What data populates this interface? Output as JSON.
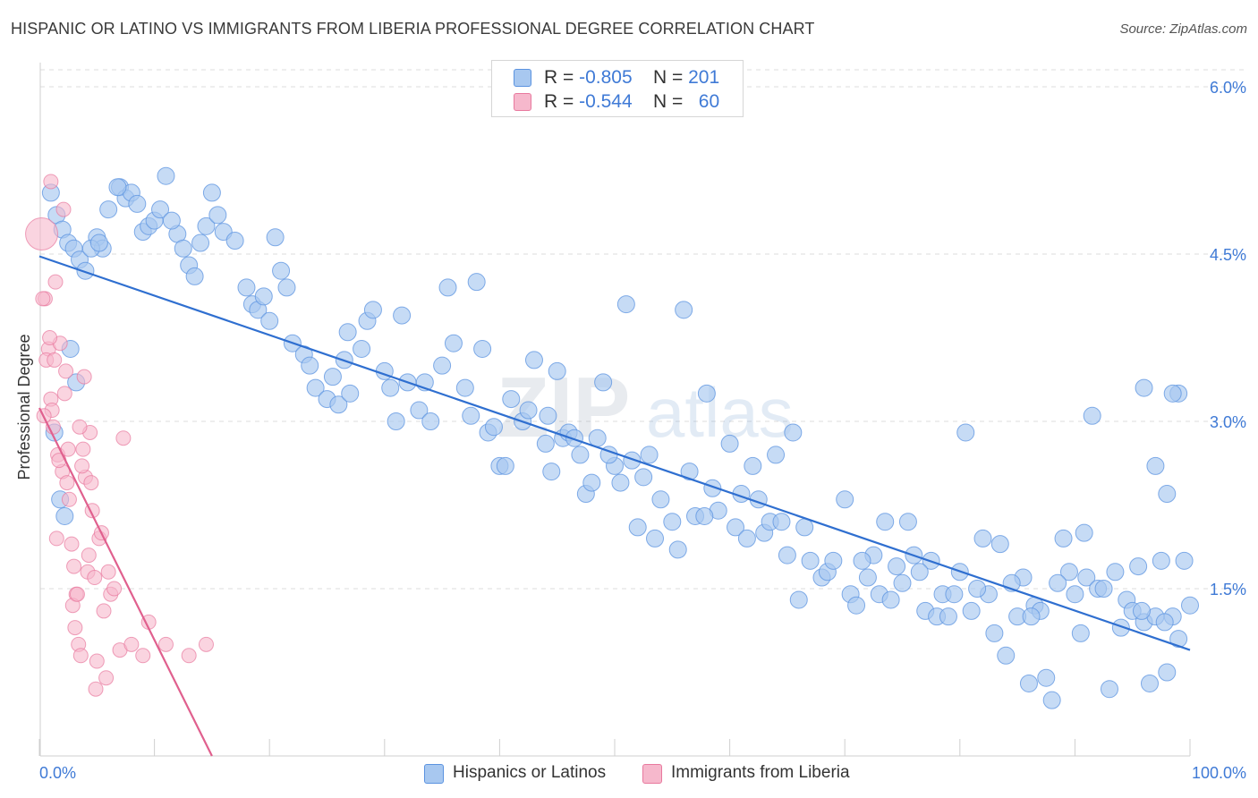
{
  "header": {
    "title": "HISPANIC OR LATINO VS IMMIGRANTS FROM LIBERIA PROFESSIONAL DEGREE CORRELATION CHART",
    "source": "Source: ZipAtlas.com"
  },
  "watermark": {
    "zip": "ZIP",
    "atlas": "atlas"
  },
  "legend_top": {
    "rows": [
      {
        "r_label": "R =",
        "r_value": "-0.805",
        "n_label": "N =",
        "n_value": "201",
        "color": "#a8c8f0"
      },
      {
        "r_label": "R =",
        "r_value": "-0.544",
        "n_label": "N =",
        "n_value": "60",
        "color": "#f6b8cc"
      }
    ]
  },
  "legend_bottom": {
    "items": [
      {
        "label": "Hispanics or Latinos",
        "color": "#a8c8f0"
      },
      {
        "label": "Immigrants from Liberia",
        "color": "#f6b8cc"
      }
    ]
  },
  "chart_data": {
    "type": "scatter",
    "title": "HISPANIC OR LATINO VS IMMIGRANTS FROM LIBERIA PROFESSIONAL DEGREE CORRELATION CHART",
    "xlabel": "",
    "ylabel": "Professional Degree",
    "xlim": [
      0,
      100
    ],
    "ylim": [
      0,
      6.2
    ],
    "x_tick_labels": [
      "0.0%",
      "100.0%"
    ],
    "y_ticks": [
      1.5,
      3.0,
      4.5,
      6.0
    ],
    "y_tick_labels": [
      "1.5%",
      "3.0%",
      "4.5%",
      "6.0%"
    ],
    "grid": true,
    "legend_position": "top-center",
    "colors": {
      "blue_fill": "#a8c8f0",
      "blue_edge": "#5b93e0",
      "blue_line": "#2f6fd0",
      "pink_fill": "#f6b8cc",
      "pink_edge": "#e8799e",
      "pink_line": "#e0608e"
    },
    "series": [
      {
        "name": "Hispanics or Latinos",
        "r": -0.805,
        "n": 201,
        "trend": {
          "x": [
            0,
            100
          ],
          "y": [
            4.48,
            0.95
          ]
        },
        "points": [
          [
            1,
            5.05
          ],
          [
            1.5,
            4.85
          ],
          [
            2,
            4.72
          ],
          [
            2.5,
            4.6
          ],
          [
            3,
            4.55
          ],
          [
            3.5,
            4.45
          ],
          [
            4,
            4.35
          ],
          [
            5,
            4.65
          ],
          [
            5.5,
            4.55
          ],
          [
            6,
            4.9
          ],
          [
            7,
            5.1
          ],
          [
            7.5,
            5.0
          ],
          [
            8,
            5.05
          ],
          [
            8.5,
            4.95
          ],
          [
            9,
            4.7
          ],
          [
            9.5,
            4.75
          ],
          [
            10,
            4.8
          ],
          [
            10.5,
            4.9
          ],
          [
            11,
            5.2
          ],
          [
            12,
            4.68
          ],
          [
            12.5,
            4.55
          ],
          [
            13,
            4.4
          ],
          [
            13.5,
            4.3
          ],
          [
            14,
            4.6
          ],
          [
            14.5,
            4.75
          ],
          [
            15,
            5.05
          ],
          [
            15.5,
            4.85
          ],
          [
            16,
            4.7
          ],
          [
            17,
            4.62
          ],
          [
            18,
            4.2
          ],
          [
            18.5,
            4.05
          ],
          [
            19,
            4.0
          ],
          [
            19.5,
            4.12
          ],
          [
            20,
            3.9
          ],
          [
            21,
            4.35
          ],
          [
            21.5,
            4.2
          ],
          [
            22,
            3.7
          ],
          [
            23,
            3.6
          ],
          [
            23.5,
            3.5
          ],
          [
            24,
            3.3
          ],
          [
            25,
            3.2
          ],
          [
            25.5,
            3.4
          ],
          [
            26,
            3.15
          ],
          [
            26.5,
            3.55
          ],
          [
            27,
            3.25
          ],
          [
            28,
            3.65
          ],
          [
            28.5,
            3.9
          ],
          [
            29,
            4.0
          ],
          [
            30,
            3.45
          ],
          [
            30.5,
            3.3
          ],
          [
            31,
            3.0
          ],
          [
            32,
            3.35
          ],
          [
            33,
            3.1
          ],
          [
            33.5,
            3.35
          ],
          [
            34,
            3.0
          ],
          [
            35,
            3.5
          ],
          [
            35.5,
            4.2
          ],
          [
            36,
            3.7
          ],
          [
            37,
            3.3
          ],
          [
            37.5,
            3.05
          ],
          [
            38,
            4.25
          ],
          [
            39,
            2.9
          ],
          [
            39.5,
            2.95
          ],
          [
            40,
            2.6
          ],
          [
            41,
            3.2
          ],
          [
            42,
            3.0
          ],
          [
            42.5,
            3.1
          ],
          [
            43,
            3.55
          ],
          [
            44,
            2.8
          ],
          [
            44.5,
            2.55
          ],
          [
            45,
            3.45
          ],
          [
            45.5,
            2.85
          ],
          [
            46,
            2.9
          ],
          [
            47,
            2.7
          ],
          [
            47.5,
            2.35
          ],
          [
            48,
            2.45
          ],
          [
            48.5,
            2.85
          ],
          [
            49,
            3.35
          ],
          [
            50,
            2.6
          ],
          [
            50.5,
            2.45
          ],
          [
            51,
            4.05
          ],
          [
            51.5,
            2.65
          ],
          [
            52,
            2.05
          ],
          [
            52.5,
            2.5
          ],
          [
            53,
            2.7
          ],
          [
            54,
            2.3
          ],
          [
            55,
            2.1
          ],
          [
            55.5,
            1.85
          ],
          [
            56,
            4.0
          ],
          [
            56.5,
            2.55
          ],
          [
            57,
            2.15
          ],
          [
            58,
            3.25
          ],
          [
            58.5,
            2.4
          ],
          [
            59,
            2.2
          ],
          [
            60,
            2.8
          ],
          [
            60.5,
            2.05
          ],
          [
            61,
            2.35
          ],
          [
            62,
            2.6
          ],
          [
            62.5,
            2.3
          ],
          [
            63,
            2.0
          ],
          [
            63.5,
            2.1
          ],
          [
            64,
            2.7
          ],
          [
            65,
            1.8
          ],
          [
            65.5,
            2.9
          ],
          [
            66,
            1.4
          ],
          [
            67,
            1.75
          ],
          [
            68,
            1.6
          ],
          [
            68.5,
            1.65
          ],
          [
            69,
            1.75
          ],
          [
            70,
            2.3
          ],
          [
            70.5,
            1.45
          ],
          [
            71,
            1.35
          ],
          [
            72,
            1.6
          ],
          [
            72.5,
            1.8
          ],
          [
            73,
            1.45
          ],
          [
            73.5,
            2.1
          ],
          [
            74,
            1.4
          ],
          [
            75,
            1.55
          ],
          [
            75.5,
            2.1
          ],
          [
            76,
            1.8
          ],
          [
            77,
            1.3
          ],
          [
            77.5,
            1.75
          ],
          [
            78,
            1.25
          ],
          [
            78.5,
            1.45
          ],
          [
            79,
            1.25
          ],
          [
            80,
            1.65
          ],
          [
            80.5,
            2.9
          ],
          [
            81,
            1.3
          ],
          [
            82,
            1.95
          ],
          [
            82.5,
            1.45
          ],
          [
            83,
            1.1
          ],
          [
            83.5,
            1.9
          ],
          [
            84,
            0.9
          ],
          [
            85,
            1.25
          ],
          [
            85.5,
            1.6
          ],
          [
            86,
            0.65
          ],
          [
            86.5,
            1.35
          ],
          [
            87,
            1.3
          ],
          [
            87.5,
            0.7
          ],
          [
            88,
            0.5
          ],
          [
            89,
            1.95
          ],
          [
            89.5,
            1.65
          ],
          [
            90,
            1.45
          ],
          [
            90.5,
            1.1
          ],
          [
            91,
            1.6
          ],
          [
            91.5,
            3.05
          ],
          [
            92,
            1.5
          ],
          [
            93,
            0.6
          ],
          [
            93.5,
            1.65
          ],
          [
            94,
            1.15
          ],
          [
            94.5,
            1.4
          ],
          [
            95,
            1.3
          ],
          [
            95.5,
            1.7
          ],
          [
            96,
            1.2
          ],
          [
            96.5,
            0.65
          ],
          [
            97,
            1.25
          ],
          [
            97.5,
            1.75
          ],
          [
            98,
            0.75
          ],
          [
            98.5,
            1.25
          ],
          [
            99,
            1.05
          ],
          [
            99.5,
            1.75
          ],
          [
            100,
            1.35
          ],
          [
            99,
            3.25
          ],
          [
            98.5,
            3.25
          ],
          [
            98,
            2.35
          ],
          [
            97,
            2.6
          ],
          [
            96,
            3.3
          ],
          [
            1.3,
            2.9
          ],
          [
            2.7,
            3.65
          ],
          [
            3.2,
            3.35
          ],
          [
            1.8,
            2.3
          ],
          [
            2.2,
            2.15
          ],
          [
            4.5,
            4.55
          ],
          [
            5.2,
            4.6
          ],
          [
            6.8,
            5.1
          ],
          [
            11.5,
            4.8
          ],
          [
            20.5,
            4.65
          ],
          [
            26.8,
            3.8
          ],
          [
            31.5,
            3.95
          ],
          [
            38.5,
            3.65
          ],
          [
            40.5,
            2.6
          ],
          [
            44.2,
            3.05
          ],
          [
            46.5,
            2.85
          ],
          [
            49.5,
            2.7
          ],
          [
            53.5,
            1.95
          ],
          [
            57.8,
            2.15
          ],
          [
            61.5,
            1.95
          ],
          [
            64.5,
            2.1
          ],
          [
            66.5,
            2.05
          ],
          [
            71.5,
            1.75
          ],
          [
            74.5,
            1.7
          ],
          [
            76.5,
            1.65
          ],
          [
            79.5,
            1.45
          ],
          [
            81.5,
            1.5
          ],
          [
            84.5,
            1.55
          ],
          [
            86.2,
            1.25
          ],
          [
            88.5,
            1.55
          ],
          [
            90.8,
            2.0
          ],
          [
            92.5,
            1.5
          ],
          [
            95.8,
            1.3
          ],
          [
            97.8,
            1.2
          ]
        ]
      },
      {
        "name": "Immigrants from Liberia",
        "r": -0.544,
        "n": 60,
        "trend": {
          "x": [
            0,
            15
          ],
          "y": [
            3.12,
            0.0
          ]
        },
        "points": [
          [
            0.2,
            4.68
          ],
          [
            0.5,
            4.1
          ],
          [
            0.8,
            3.65
          ],
          [
            1,
            3.2
          ],
          [
            1.2,
            2.95
          ],
          [
            1.4,
            4.25
          ],
          [
            1.6,
            2.7
          ],
          [
            1.8,
            3.7
          ],
          [
            2,
            2.55
          ],
          [
            2.2,
            3.25
          ],
          [
            2.4,
            2.45
          ],
          [
            2.6,
            2.3
          ],
          [
            2.8,
            1.9
          ],
          [
            3,
            1.7
          ],
          [
            3.2,
            1.45
          ],
          [
            3.4,
            1.0
          ],
          [
            3.6,
            0.9
          ],
          [
            3.8,
            2.75
          ],
          [
            4,
            2.5
          ],
          [
            4.2,
            1.65
          ],
          [
            4.4,
            2.9
          ],
          [
            4.6,
            2.2
          ],
          [
            4.8,
            1.6
          ],
          [
            5,
            0.85
          ],
          [
            5.2,
            1.95
          ],
          [
            5.4,
            2.0
          ],
          [
            5.6,
            1.3
          ],
          [
            5.8,
            0.7
          ],
          [
            6,
            1.65
          ],
          [
            6.2,
            1.45
          ],
          [
            6.5,
            1.5
          ],
          [
            7,
            0.95
          ],
          [
            7.3,
            2.85
          ],
          [
            8,
            1.0
          ],
          [
            9,
            0.9
          ],
          [
            9.5,
            1.2
          ],
          [
            11,
            1.0
          ],
          [
            13,
            0.9
          ],
          [
            14.5,
            1.0
          ],
          [
            0.3,
            4.1
          ],
          [
            0.6,
            3.55
          ],
          [
            0.9,
            3.75
          ],
          [
            1.1,
            3.1
          ],
          [
            1.3,
            3.55
          ],
          [
            1.7,
            2.65
          ],
          [
            2.1,
            4.9
          ],
          [
            2.3,
            3.45
          ],
          [
            2.5,
            2.75
          ],
          [
            2.9,
            1.35
          ],
          [
            3.1,
            1.15
          ],
          [
            3.3,
            1.45
          ],
          [
            3.5,
            2.95
          ],
          [
            3.7,
            2.6
          ],
          [
            3.9,
            3.4
          ],
          [
            4.3,
            1.8
          ],
          [
            4.5,
            2.45
          ],
          [
            4.9,
            0.6
          ],
          [
            1.0,
            5.15
          ],
          [
            1.5,
            1.95
          ],
          [
            0.4,
            3.05
          ]
        ]
      }
    ]
  }
}
